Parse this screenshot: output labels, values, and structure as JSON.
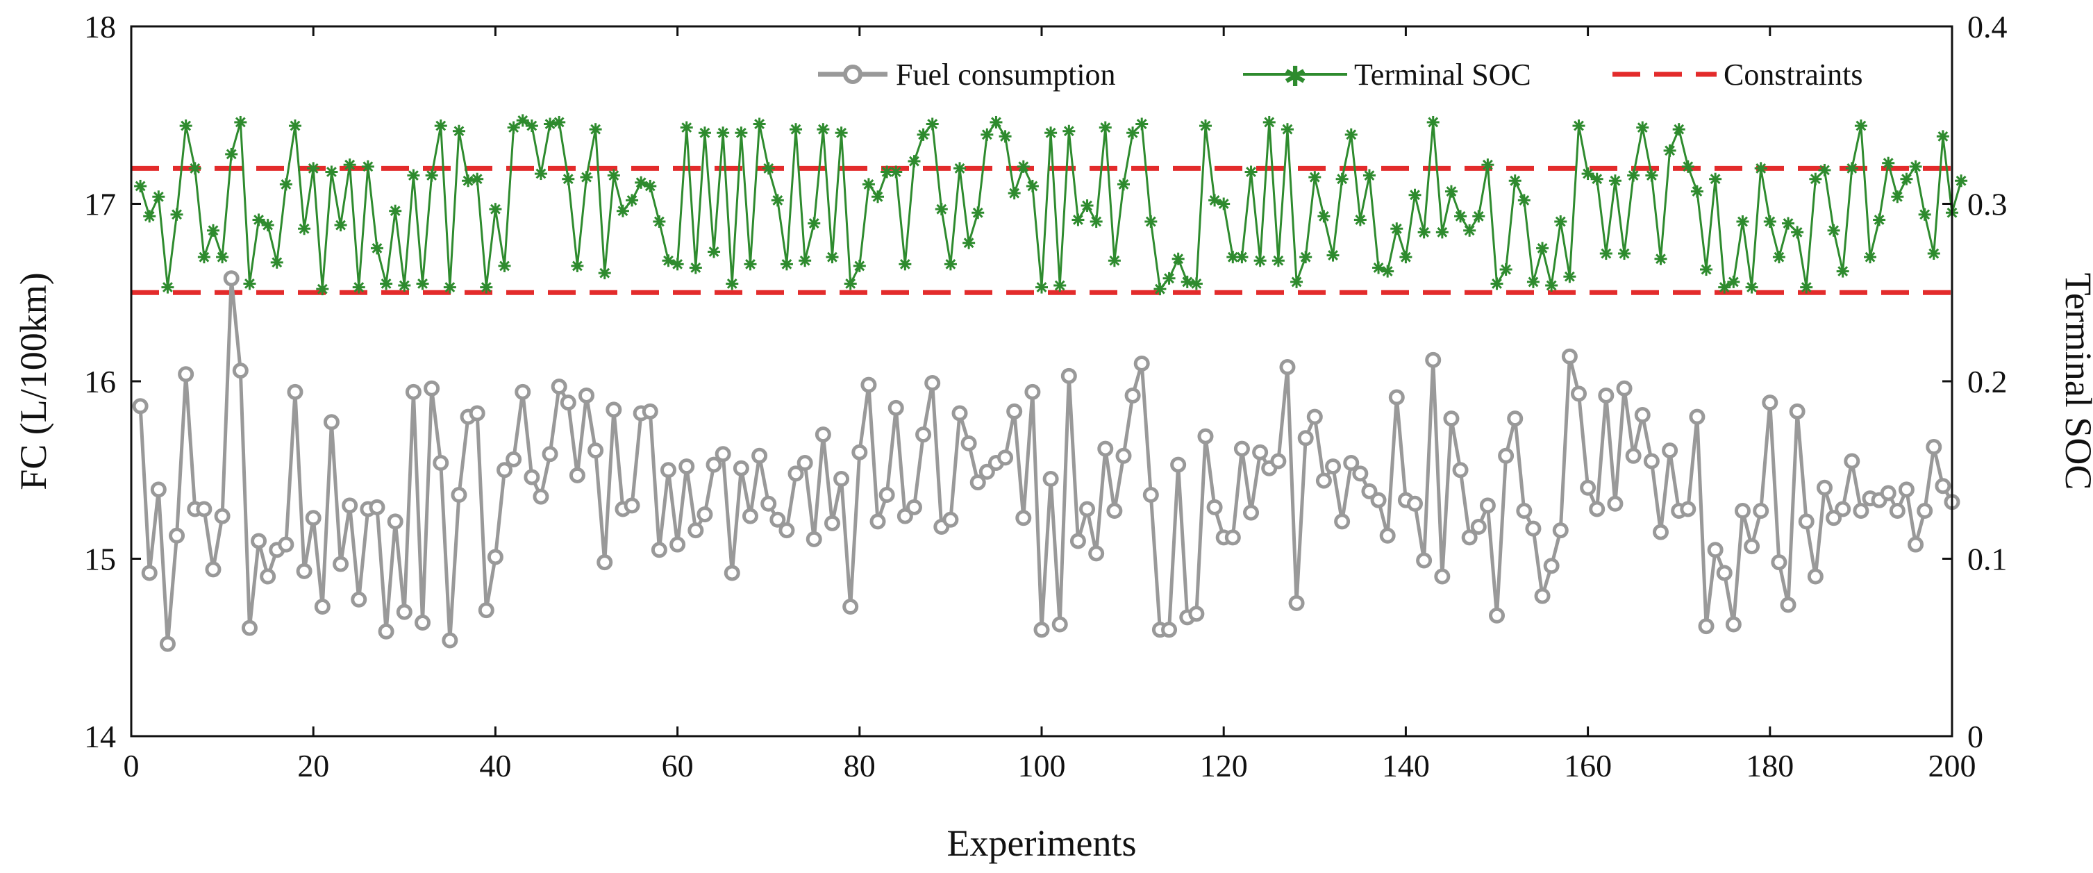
{
  "chart_data": {
    "type": "line",
    "title": "",
    "xlabel": "Experiments",
    "ylabel": "FC (L/100km)",
    "y2label": "Terminal SOC",
    "xlim": [
      0,
      200
    ],
    "ylim": [
      14,
      18
    ],
    "y2lim": [
      0,
      0.4
    ],
    "xticks": [
      "0",
      "20",
      "40",
      "60",
      "80",
      "100",
      "120",
      "140",
      "160",
      "180",
      "200"
    ],
    "yticks": [
      "14",
      "15",
      "16",
      "17",
      "18"
    ],
    "y2ticks": [
      "0",
      "0.1",
      "0.2",
      "0.3",
      "0.4"
    ],
    "legend_position": "top-right",
    "colors": {
      "fc": "#999999",
      "soc": "#2e8b2e",
      "constraint": "#e32b2b"
    },
    "series": [
      {
        "name": "Fuel consumption",
        "axis": "left",
        "x_start": 1,
        "x_step": 1,
        "values": [
          15.86,
          14.92,
          15.39,
          14.52,
          15.13,
          16.04,
          15.28,
          15.28,
          14.94,
          15.24,
          16.58,
          16.06,
          14.61,
          15.1,
          14.9,
          15.05,
          15.08,
          15.94,
          14.93,
          15.23,
          14.73,
          15.77,
          14.97,
          15.3,
          14.77,
          15.28,
          15.29,
          14.59,
          15.21,
          14.7,
          15.94,
          14.64,
          15.96,
          15.54,
          14.54,
          15.36,
          15.8,
          15.82,
          14.71,
          15.01,
          15.5,
          15.56,
          15.94,
          15.46,
          15.35,
          15.59,
          15.97,
          15.88,
          15.47,
          15.92,
          15.61,
          14.98,
          15.84,
          15.28,
          15.3,
          15.82,
          15.83,
          15.05,
          15.5,
          15.08,
          15.52,
          15.16,
          15.25,
          15.53,
          15.59,
          14.92,
          15.51,
          15.24,
          15.58,
          15.31,
          15.22,
          15.16,
          15.48,
          15.54,
          15.11,
          15.7,
          15.2,
          15.45,
          14.73,
          15.6,
          15.98,
          15.21,
          15.36,
          15.85,
          15.24,
          15.29,
          15.7,
          15.99,
          15.18,
          15.22,
          15.82,
          15.65,
          15.43,
          15.49,
          15.54,
          15.57,
          15.83,
          15.23,
          15.94,
          14.6,
          15.45,
          14.63,
          16.03,
          15.1,
          15.28,
          15.03,
          15.62,
          15.27,
          15.58,
          15.92,
          16.1,
          15.36,
          14.6,
          14.6,
          15.53,
          14.67,
          14.69,
          15.69,
          15.29,
          15.12,
          15.12,
          15.62,
          15.26,
          15.6,
          15.51,
          15.55,
          16.08,
          14.75,
          15.68,
          15.8,
          15.44,
          15.52,
          15.21,
          15.54,
          15.48,
          15.38,
          15.33,
          15.13,
          15.91,
          15.33,
          15.31,
          14.99,
          16.12,
          14.9,
          15.79,
          15.5,
          15.12,
          15.18,
          15.3,
          14.68,
          15.58,
          15.79,
          15.27,
          15.17,
          14.79,
          14.96,
          15.16,
          16.14,
          15.93,
          15.4,
          15.28,
          15.92,
          15.31,
          15.96,
          15.58,
          15.81,
          15.55,
          15.15,
          15.61,
          15.27,
          15.28,
          15.8,
          14.62,
          15.05,
          14.92,
          14.63,
          15.27,
          15.07,
          15.27,
          15.88,
          14.98,
          14.74,
          15.83,
          15.21,
          14.9,
          15.4,
          15.23,
          15.28,
          15.55,
          15.27,
          15.34,
          15.33,
          15.37,
          15.27,
          15.39,
          15.08,
          15.27,
          15.63,
          15.41,
          15.32
        ]
      },
      {
        "name": "Terminal SOC",
        "axis": "right",
        "x_start": 1,
        "x_step": 1,
        "values": [
          0.31,
          0.293,
          0.304,
          0.253,
          0.294,
          0.344,
          0.32,
          0.27,
          0.285,
          0.27,
          0.328,
          0.346,
          0.255,
          0.291,
          0.288,
          0.267,
          0.311,
          0.344,
          0.286,
          0.32,
          0.252,
          0.318,
          0.288,
          0.322,
          0.253,
          0.321,
          0.275,
          0.255,
          0.296,
          0.254,
          0.316,
          0.255,
          0.316,
          0.344,
          0.253,
          0.341,
          0.313,
          0.314,
          0.253,
          0.297,
          0.265,
          0.343,
          0.347,
          0.344,
          0.317,
          0.345,
          0.346,
          0.314,
          0.265,
          0.315,
          0.342,
          0.261,
          0.316,
          0.296,
          0.302,
          0.312,
          0.31,
          0.29,
          0.268,
          0.266,
          0.343,
          0.264,
          0.34,
          0.273,
          0.34,
          0.255,
          0.34,
          0.266,
          0.345,
          0.32,
          0.302,
          0.266,
          0.342,
          0.268,
          0.289,
          0.342,
          0.27,
          0.34,
          0.255,
          0.265,
          0.311,
          0.304,
          0.318,
          0.318,
          0.266,
          0.324,
          0.339,
          0.345,
          0.297,
          0.266,
          0.32,
          0.278,
          0.295,
          0.339,
          0.346,
          0.338,
          0.306,
          0.321,
          0.31,
          0.253,
          0.34,
          0.254,
          0.341,
          0.291,
          0.299,
          0.29,
          0.343,
          0.268,
          0.311,
          0.34,
          0.345,
          0.29,
          0.252,
          0.258,
          0.269,
          0.256,
          0.255,
          0.344,
          0.302,
          0.3,
          0.27,
          0.27,
          0.318,
          0.268,
          0.346,
          0.268,
          0.342,
          0.256,
          0.27,
          0.315,
          0.293,
          0.271,
          0.314,
          0.339,
          0.291,
          0.316,
          0.264,
          0.262,
          0.286,
          0.27,
          0.305,
          0.284,
          0.346,
          0.284,
          0.307,
          0.293,
          0.285,
          0.293,
          0.322,
          0.255,
          0.263,
          0.313,
          0.302,
          0.256,
          0.275,
          0.254,
          0.29,
          0.259,
          0.344,
          0.317,
          0.314,
          0.272,
          0.313,
          0.272,
          0.316,
          0.343,
          0.316,
          0.269,
          0.33,
          0.342,
          0.321,
          0.307,
          0.263,
          0.314,
          0.253,
          0.256,
          0.29,
          0.253,
          0.32,
          0.29,
          0.27,
          0.289,
          0.284,
          0.253,
          0.314,
          0.319,
          0.285,
          0.262,
          0.32,
          0.344,
          0.27,
          0.291,
          0.323,
          0.304,
          0.314,
          0.321,
          0.294,
          0.272,
          0.338,
          0.295,
          0.313
        ]
      },
      {
        "name": "Constraints",
        "axis": "right",
        "style": "dashed",
        "values": [
          0.25,
          0.32
        ]
      }
    ]
  }
}
